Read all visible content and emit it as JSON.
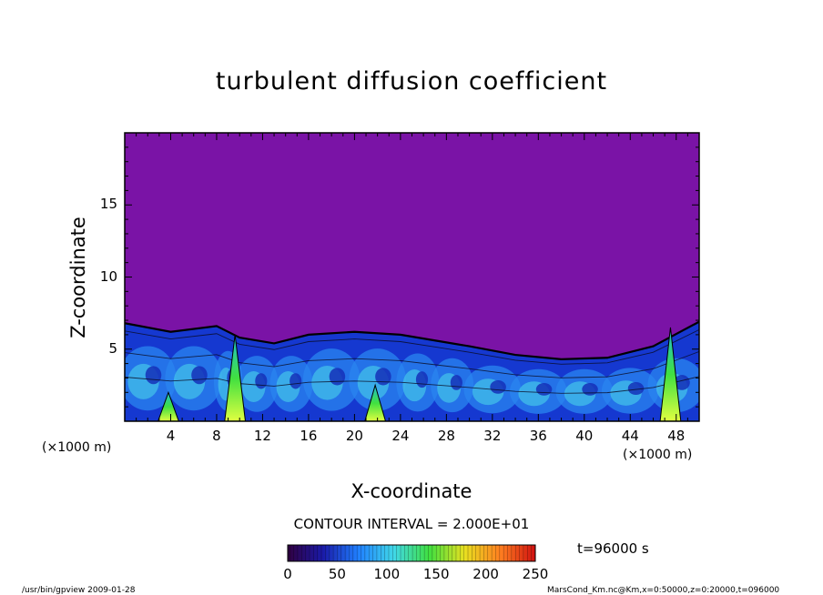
{
  "chart_data": {
    "type": "heatmap",
    "title": "turbulent diffusion coefficient",
    "xlabel": "X-coordinate",
    "ylabel": "Z-coordinate",
    "x_unit_label": "(×1000 m)",
    "z_unit_label": "(×1000 m)",
    "xlim": [
      0,
      50
    ],
    "ylim": [
      0,
      20
    ],
    "x_ticks": [
      4,
      8,
      12,
      16,
      20,
      24,
      28,
      32,
      36,
      40,
      44,
      48
    ],
    "y_ticks": [
      5,
      10,
      15
    ],
    "field_description": "Turbulent mixed layer below about 6 km with convective cells; near-zero values above",
    "mixed_layer_top": [
      [
        0,
        6.8
      ],
      [
        4,
        6.2
      ],
      [
        8,
        6.6
      ],
      [
        10,
        5.8
      ],
      [
        13,
        5.4
      ],
      [
        16,
        6.0
      ],
      [
        20,
        6.2
      ],
      [
        24,
        6.0
      ],
      [
        27,
        5.6
      ],
      [
        30,
        5.2
      ],
      [
        34,
        4.6
      ],
      [
        38,
        4.3
      ],
      [
        42,
        4.4
      ],
      [
        46,
        5.2
      ],
      [
        50,
        6.9
      ]
    ],
    "plumes": [
      {
        "x": 3.8,
        "top": 2.0,
        "max": 140
      },
      {
        "x": 9.6,
        "top": 6.0,
        "max": 130
      },
      {
        "x": 21.8,
        "top": 2.5,
        "max": 160
      },
      {
        "x": 47.5,
        "top": 6.5,
        "max": 140
      }
    ],
    "colorbar": {
      "min": 0,
      "max": 250,
      "ticks": [
        0,
        50,
        100,
        150,
        200,
        250
      ],
      "colors": [
        "#300040",
        "#1a1aa8",
        "#2080ff",
        "#40d8e8",
        "#40e040",
        "#e8e020",
        "#ff8020",
        "#d01010"
      ]
    },
    "contour_interval_text": "CONTOUR INTERVAL = 2.000E+01",
    "time_label": "t=96000 s"
  },
  "footer": {
    "left": "/usr/bin/gpview 2009-01-28",
    "right": "MarsCond_Km.nc@Km,x=0:50000,z=0:20000,t=096000"
  }
}
